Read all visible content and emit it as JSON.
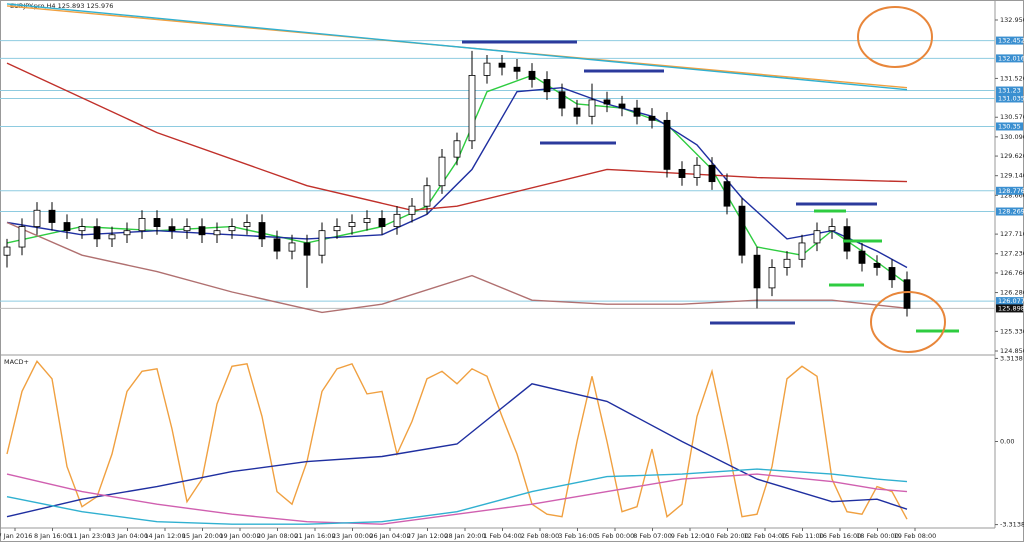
{
  "chart_data": [
    {
      "type": "candlestick",
      "title": "EURJPY.pro,H4  125.893 125.976",
      "open": [
        127.2,
        127.4,
        127.9,
        128.3,
        128.0,
        127.8,
        127.9,
        127.6,
        127.7,
        127.8,
        128.1,
        127.9,
        127.8,
        127.9,
        127.7,
        127.8,
        127.9,
        128.0,
        127.6,
        127.3,
        127.5,
        127.2,
        127.8,
        127.9,
        128.0,
        128.1,
        127.9,
        128.2,
        128.4,
        128.9,
        129.6,
        130.0,
        131.6,
        131.9,
        131.8,
        131.7,
        131.5,
        131.2,
        130.8,
        130.6,
        131.0,
        130.9,
        130.8,
        130.6,
        130.5,
        129.3,
        129.1,
        129.4,
        129.0,
        128.4,
        127.2,
        126.4,
        126.9,
        127.1,
        127.5,
        127.8,
        127.9,
        127.3,
        127.0,
        126.9,
        126.6
      ],
      "high": [
        127.6,
        128.1,
        128.5,
        128.5,
        128.2,
        128.1,
        128.1,
        127.9,
        128.0,
        128.3,
        128.3,
        128.1,
        128.1,
        128.1,
        128.0,
        128.1,
        128.2,
        128.2,
        127.8,
        127.7,
        127.7,
        128.0,
        128.1,
        128.2,
        128.3,
        128.3,
        128.4,
        128.6,
        129.1,
        129.8,
        130.2,
        132.2,
        132.1,
        132.1,
        132.0,
        131.9,
        131.7,
        131.4,
        131.0,
        131.4,
        131.2,
        131.1,
        131.0,
        130.8,
        130.7,
        129.5,
        129.6,
        129.6,
        129.2,
        128.6,
        127.4,
        127.1,
        127.3,
        127.7,
        128.0,
        128.1,
        128.1,
        127.5,
        127.2,
        127.1,
        126.8
      ],
      "low": [
        126.9,
        127.2,
        127.7,
        127.8,
        127.6,
        127.6,
        127.4,
        127.4,
        127.5,
        127.6,
        127.7,
        127.6,
        127.6,
        127.5,
        127.5,
        127.6,
        127.7,
        127.4,
        127.1,
        127.1,
        126.4,
        127.0,
        127.6,
        127.7,
        127.8,
        127.7,
        127.7,
        128.0,
        128.2,
        128.7,
        129.4,
        129.8,
        131.4,
        131.6,
        131.5,
        131.3,
        131.0,
        130.6,
        130.4,
        130.4,
        130.7,
        130.6,
        130.4,
        130.3,
        129.1,
        128.9,
        128.9,
        128.8,
        128.2,
        127.0,
        125.9,
        126.2,
        126.7,
        126.9,
        127.3,
        127.6,
        127.1,
        126.8,
        126.7,
        126.4,
        125.7
      ],
      "close": [
        127.4,
        127.9,
        128.3,
        128.0,
        127.8,
        127.9,
        127.6,
        127.7,
        127.8,
        128.1,
        127.9,
        127.8,
        127.9,
        127.7,
        127.8,
        127.9,
        128.0,
        127.6,
        127.3,
        127.5,
        127.2,
        127.8,
        127.9,
        128.0,
        128.1,
        127.9,
        128.2,
        128.4,
        128.9,
        129.6,
        130.0,
        131.6,
        131.9,
        131.8,
        131.7,
        131.5,
        131.2,
        130.8,
        130.6,
        131.0,
        130.9,
        130.8,
        130.6,
        130.5,
        129.3,
        129.1,
        129.4,
        129.0,
        128.4,
        127.2,
        126.4,
        126.9,
        127.1,
        127.5,
        127.8,
        127.9,
        127.3,
        127.0,
        126.9,
        126.6,
        125.9
      ],
      "series": [
        {
          "color": "#2ecc40",
          "x": [
            0,
            5,
            10,
            15,
            20,
            25,
            28,
            30,
            32,
            35,
            38,
            41,
            44,
            47,
            50,
            53,
            55,
            57,
            60
          ],
          "values": [
            127.5,
            127.9,
            127.8,
            127.9,
            127.5,
            127.9,
            128.4,
            129.5,
            131.2,
            131.6,
            130.9,
            130.8,
            130.4,
            129.3,
            127.4,
            127.2,
            127.8,
            127.3,
            126.5
          ]
        },
        {
          "color": "#1f2fa0",
          "x": [
            0,
            5,
            10,
            15,
            20,
            25,
            28,
            31,
            34,
            37,
            40,
            43,
            46,
            49,
            52,
            55,
            58,
            60
          ],
          "values": [
            128.0,
            127.7,
            127.8,
            127.7,
            127.6,
            127.7,
            128.2,
            129.3,
            131.2,
            131.3,
            130.9,
            130.6,
            129.9,
            128.6,
            127.6,
            127.8,
            127.3,
            126.9
          ]
        },
        {
          "color": "#c0302a",
          "x": [
            0,
            10,
            20,
            27,
            30,
            40,
            50,
            60
          ],
          "values": [
            131.9,
            130.2,
            128.9,
            128.3,
            128.4,
            129.3,
            129.1,
            129.0
          ]
        },
        {
          "color": "#b07070",
          "x": [
            0,
            5,
            10,
            15,
            21,
            25,
            31,
            35,
            40,
            45,
            50,
            55,
            60
          ],
          "values": [
            128.0,
            127.2,
            126.8,
            126.3,
            125.8,
            126.0,
            126.7,
            126.1,
            126.0,
            126.0,
            126.1,
            126.1,
            125.9
          ]
        },
        {
          "color": "#f0a040",
          "x": [
            0,
            60
          ],
          "values": [
            133.3,
            131.3
          ]
        },
        {
          "color": "#30b0d0",
          "x": [
            0,
            60
          ],
          "values": [
            133.35,
            131.25
          ]
        }
      ],
      "levels": [
        132.452,
        132.016,
        131.23,
        131.035,
        130.35,
        128.776,
        128.269,
        126.077
      ],
      "level_color": "#8ecbe0",
      "last_price": 125.898,
      "categories": [
        "7 Jan 2016",
        "8 Jan 16:00",
        "11 Jan 23:00",
        "13 Jan 04:00",
        "14 Jan 12:00",
        "15 Jan 20:00",
        "19 Jan 00:00",
        "20 Jan 08:00",
        "21 Jan 16:00",
        "23 Jan 00:00",
        "26 Jan 04:00",
        "27 Jan 12:00",
        "28 Jan 20:00",
        "1 Feb 04:00",
        "2 Feb 08:00",
        "3 Feb 16:00",
        "5 Feb 00:00",
        "8 Feb 07:00",
        "9 Feb 12:00",
        "10 Feb 20:00",
        "12 Feb 04:00",
        "15 Feb 11:00",
        "16 Feb 16:00",
        "18 Feb 00:00",
        "19 Feb 08:00"
      ],
      "ylim": [
        124.758,
        133.445
      ],
      "yticks": [
        132.956,
        131.526,
        130.576,
        130.096,
        129.626,
        129.146,
        128.666,
        127.716,
        127.236,
        126.766,
        126.286,
        125.336,
        124.856
      ],
      "grid": false
    },
    {
      "type": "line",
      "title": "MACD+",
      "series": [
        {
          "color": "#f0a040",
          "values": [
            -0.5,
            2.0,
            3.2,
            2.5,
            -1.0,
            -2.6,
            -2.2,
            -0.5,
            2.0,
            2.8,
            2.9,
            0.5,
            -2.4,
            -1.5,
            1.5,
            3.0,
            3.1,
            1.0,
            -2.0,
            -2.5,
            -0.8,
            2.0,
            2.9,
            3.1,
            1.9,
            2.0,
            -0.5,
            0.8,
            2.5,
            2.8,
            2.3,
            2.9,
            2.6,
            1.0,
            -0.5,
            -2.5,
            -2.9,
            -3.0,
            0.0,
            2.6,
            0.0,
            -2.8,
            -2.6,
            -0.3,
            -3.0,
            -2.5,
            1.0,
            2.8,
            0.0,
            -3.0,
            -2.9,
            -1.0,
            2.5,
            3.0,
            2.6,
            -1.5,
            -2.8,
            -2.9,
            -1.8,
            -2.0,
            -3.1
          ]
        },
        {
          "color": "#1f2fa0",
          "x": [
            0,
            5,
            10,
            15,
            20,
            25,
            30,
            35,
            40,
            45,
            50,
            55,
            58,
            60
          ],
          "values": [
            -3.0,
            -2.3,
            -1.8,
            -1.2,
            -0.8,
            -0.6,
            -0.1,
            2.3,
            1.6,
            0.0,
            -1.5,
            -2.4,
            -2.3,
            -2.7
          ]
        },
        {
          "color": "#d060b0",
          "x": [
            0,
            5,
            10,
            15,
            20,
            25,
            30,
            35,
            40,
            45,
            50,
            55,
            58,
            60
          ],
          "values": [
            -1.3,
            -2.0,
            -2.5,
            -2.9,
            -3.2,
            -3.3,
            -2.9,
            -2.5,
            -2.0,
            -1.5,
            -1.3,
            -1.6,
            -1.9,
            -2.0
          ]
        },
        {
          "color": "#30b0d0",
          "x": [
            0,
            5,
            10,
            15,
            20,
            25,
            30,
            35,
            40,
            45,
            50,
            55,
            58,
            60
          ],
          "values": [
            -2.2,
            -2.8,
            -3.2,
            -3.3,
            -3.3,
            -3.2,
            -2.8,
            -2.0,
            -1.4,
            -1.3,
            -1.1,
            -1.3,
            -1.5,
            -1.6
          ]
        }
      ],
      "ylim": [
        -3.45,
        3.45
      ],
      "yticks": [
        3.3138,
        {
          "value": 0,
          "label": "0.00"
        },
        -3.3138
      ]
    }
  ]
}
